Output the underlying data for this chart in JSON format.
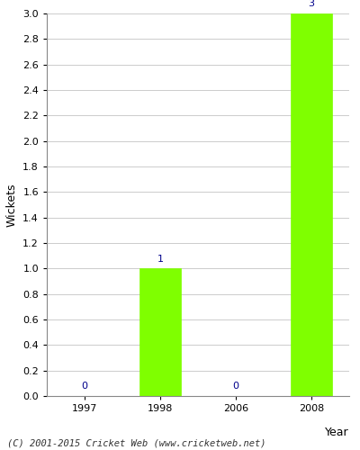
{
  "years": [
    1997,
    1998,
    2006,
    2008
  ],
  "wickets": [
    0,
    1,
    0,
    3
  ],
  "bar_color": "#7FFF00",
  "bar_edgecolor": "#7FFF00",
  "ylabel": "Wickets",
  "xlabel": "Year",
  "ylim": [
    0,
    3.0
  ],
  "ytick_step": 0.2,
  "annotation_color": "#00008B",
  "annotation_fontsize": 8,
  "axis_label_fontsize": 9,
  "tick_fontsize": 8,
  "background_color": "#ffffff",
  "grid_color": "#cccccc",
  "footer_text": "(C) 2001-2015 Cricket Web (www.cricketweb.net)",
  "footer_fontsize": 7.5,
  "footer_color": "#333333"
}
